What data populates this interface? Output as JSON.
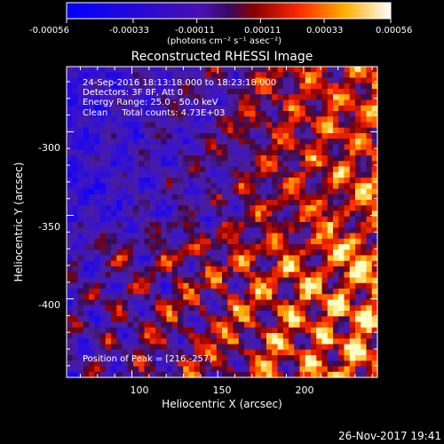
{
  "colorbar": {
    "tick_labels": [
      "-0.00056",
      "-0.00033",
      "-0.00011",
      "0.00011",
      "0.00033",
      "0.00056"
    ],
    "range": [
      -0.00056,
      0.00056
    ],
    "unit_label": "(photons cm⁻² s⁻¹ asec⁻²)"
  },
  "chart_data": {
    "type": "heatmap",
    "title": "Reconstructed RHESSI Image",
    "xlabel": "Heliocentric X (arcsec)",
    "ylabel": "Heliocentric Y (arcsec)",
    "xlim": [
      62,
      243
    ],
    "ylim": [
      -447,
      -261
    ],
    "x_ticks": [
      100,
      150,
      200
    ],
    "y_ticks": [
      -300,
      -350,
      -400
    ],
    "value_range": [
      -0.00056,
      0.00056
    ],
    "peak": {
      "x": 216,
      "y": -257
    },
    "annotations": [
      "24-Sep-2016 18:13:18.000 to 18:23:18.000",
      "Detectors: 3F 8F, Att 0",
      "Energy Range: 25.0 - 50.0 keV",
      "Clean     Total counts: 4.73E+03",
      "Position of Peak = [216,-257]"
    ]
  },
  "footer": {
    "timestamp": "26-Nov-2017 19:41"
  }
}
